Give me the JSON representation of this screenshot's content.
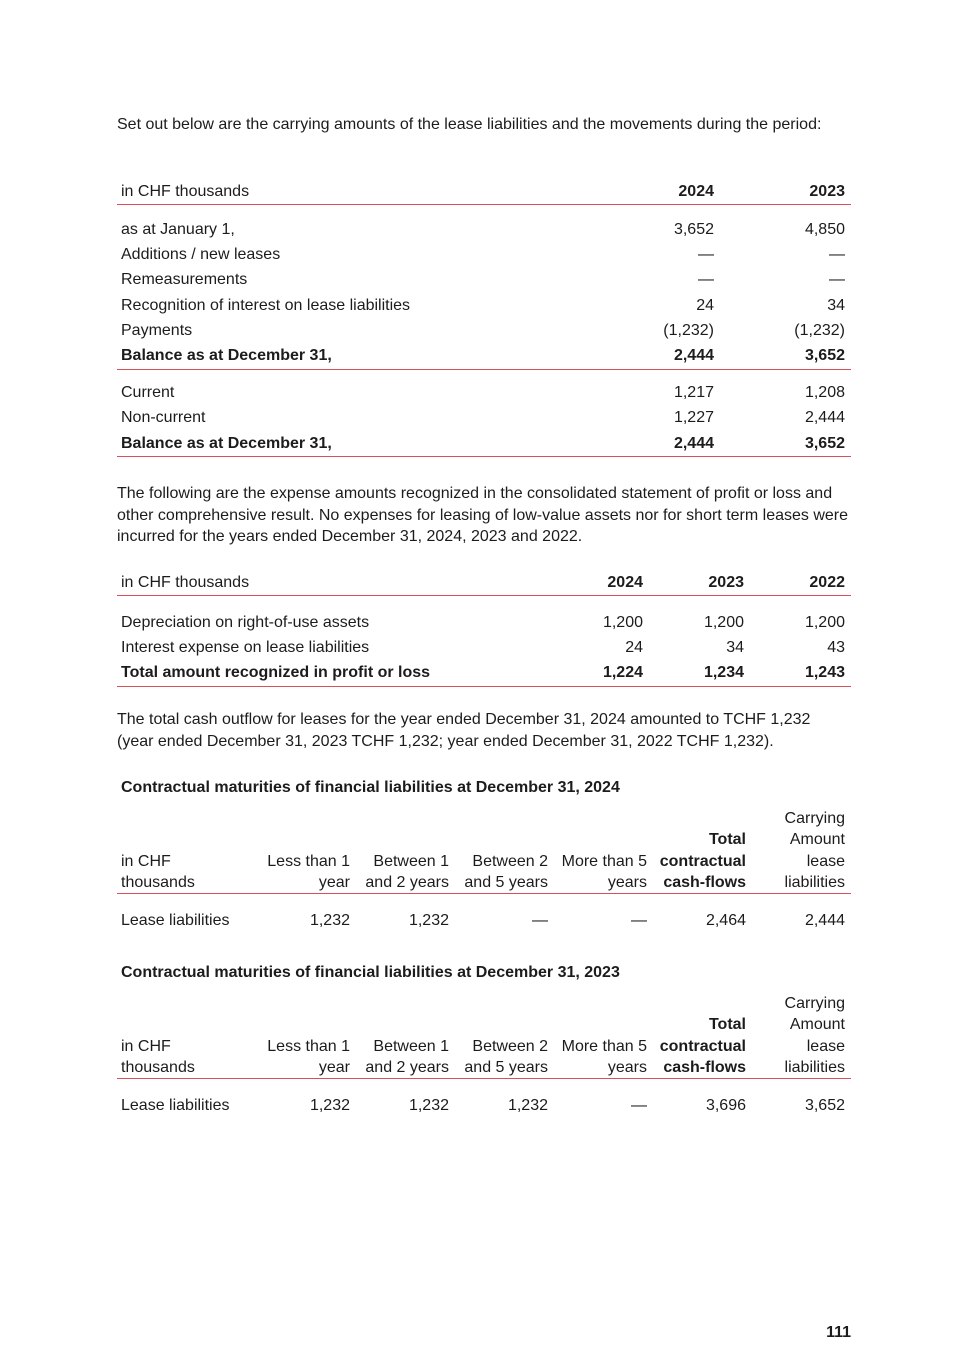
{
  "paragraphs": [
    "Set out below are the carrying amounts of the lease liabilities and the movements during the period:",
    "The following are the expense amounts recognized in the consolidated statement of profit or loss and other comprehensive result. No expenses for leasing of low-value assets nor for short term leases were incurred for the years ended December 31, 2024, 2023 and 2022.",
    "The total cash outflow for leases for the year ended December 31, 2024 amounted to TCHF 1,232 (year ended December 31, 2023 TCHF 1,232; year ended December 31, 2022 TCHF 1,232)."
  ],
  "tables": [
    {
      "header": [
        "in CHF thousands",
        "2024",
        "2023"
      ],
      "sections": [
        [
          {
            "cells": [
              "as at January 1,",
              "3,652",
              "4,850"
            ]
          },
          {
            "cells": [
              "Additions / new leases",
              "—",
              "—"
            ]
          },
          {
            "cells": [
              "Remeasurements",
              "—",
              "—"
            ]
          },
          {
            "cells": [
              "Recognition of interest on lease liabilities",
              "24",
              "34"
            ]
          },
          {
            "cells": [
              "Payments",
              "(1,232)",
              "(1,232)"
            ]
          },
          {
            "cells": [
              "Balance as at December 31,",
              "2,444",
              "3,652"
            ],
            "bold": true
          }
        ],
        [
          {
            "cells": [
              "Current",
              "1,217",
              "1,208"
            ]
          },
          {
            "cells": [
              "Non-current",
              "1,227",
              "2,444"
            ]
          },
          {
            "cells": [
              "Balance as at December 31,",
              "2,444",
              "3,652"
            ],
            "bold": true
          }
        ]
      ]
    },
    {
      "header": [
        "in CHF thousands",
        "2024",
        "2023",
        "2022"
      ],
      "sections": [
        [
          {
            "cells": [
              "Depreciation on right-of-use assets",
              "1,200",
              "1,200",
              "1,200"
            ]
          },
          {
            "cells": [
              "Interest expense on lease liabilities",
              "24",
              "34",
              "43"
            ]
          },
          {
            "cells": [
              "Total amount recognized in profit or loss",
              "1,224",
              "1,234",
              "1,243"
            ],
            "bold": true
          }
        ]
      ]
    },
    {
      "title": "Contractual maturities of financial liabilities at December 31, 2024",
      "header": [
        "in CHF thousands",
        "Less than 1 year",
        "Between 1 and 2 years",
        "Between 2 and 5 years",
        "More than 5 years",
        "Total contractual cash-flows",
        "Carrying Amount lease liabilities"
      ],
      "sections": [
        [
          {
            "cells": [
              "Lease liabilities",
              "1,232",
              "1,232",
              "—",
              "—",
              "2,464",
              "2,444"
            ]
          }
        ]
      ]
    },
    {
      "title": "Contractual maturities of financial liabilities at December 31, 2023",
      "header": [
        "in CHF thousands",
        "Less than 1 year",
        "Between 1 and 2 years",
        "Between 2 and 5 years",
        "More than 5 years",
        "Total contractual cash-flows",
        "Carrying Amount lease liabilities"
      ],
      "sections": [
        [
          {
            "cells": [
              "Lease liabilities",
              "1,232",
              "1,232",
              "1,232",
              "—",
              "3,696",
              "3,652"
            ]
          }
        ]
      ]
    }
  ],
  "page_number": "111"
}
